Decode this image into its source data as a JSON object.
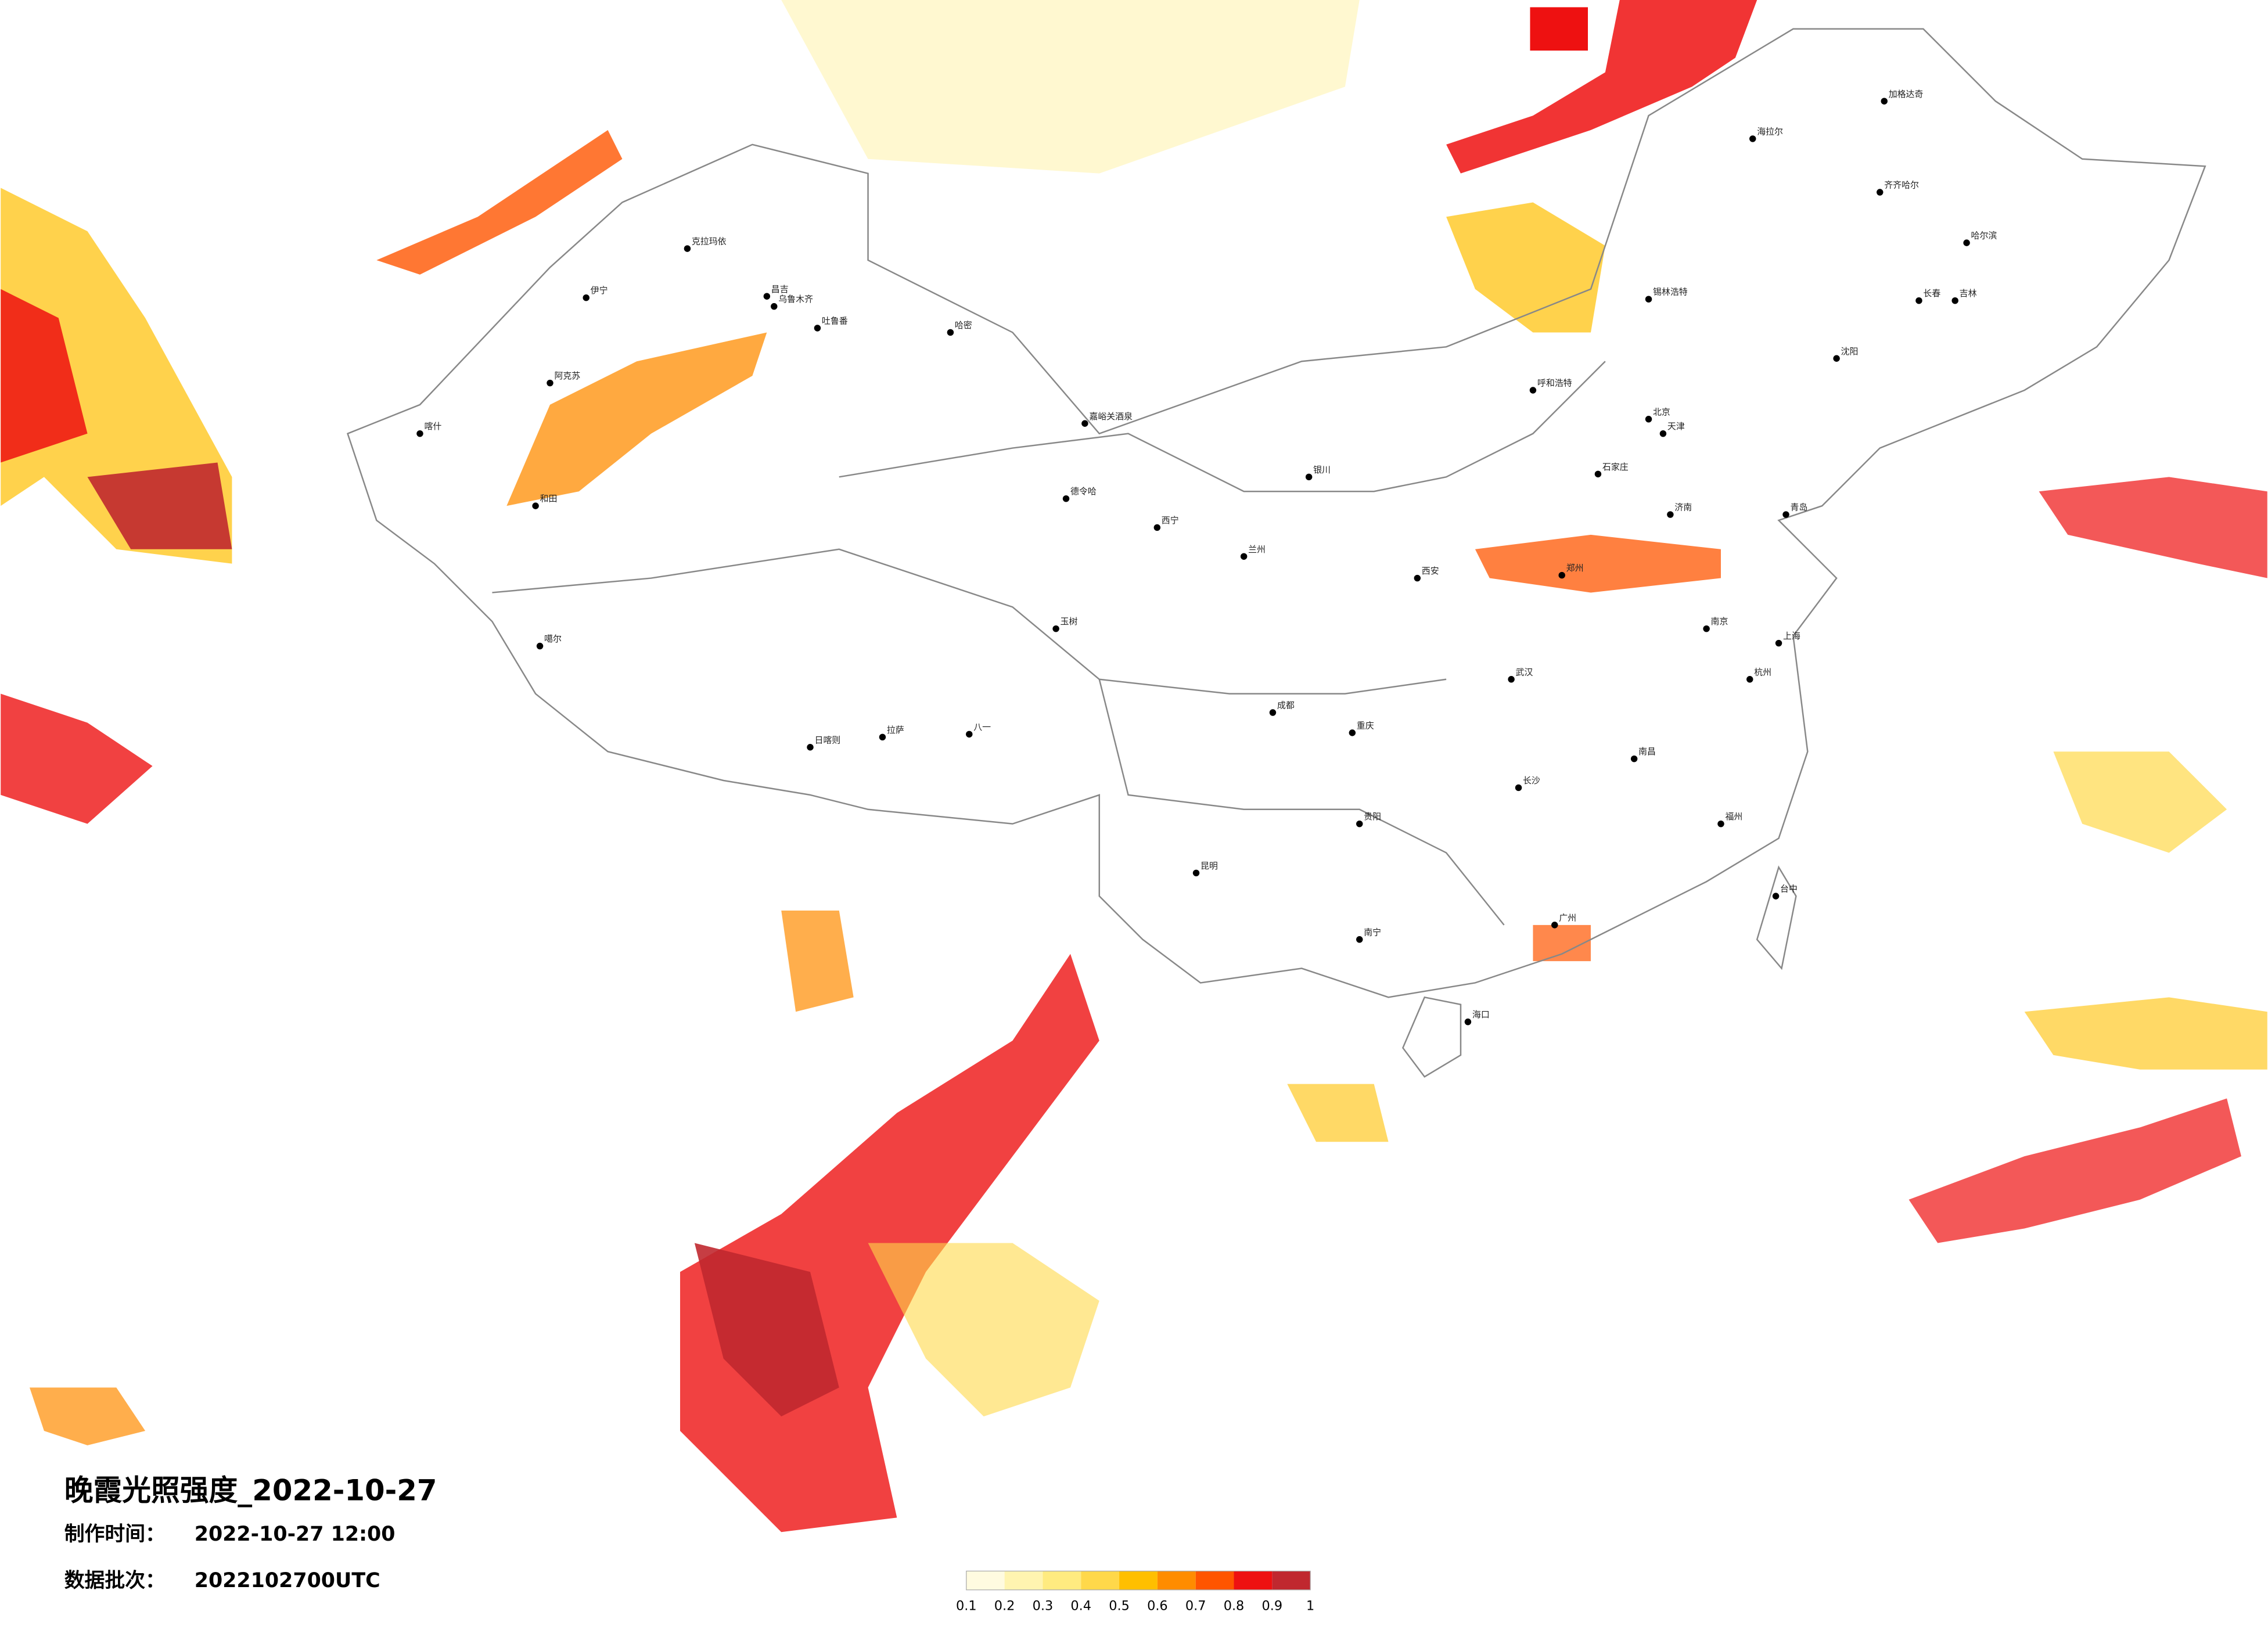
{
  "title": "晚霞光照强度_2022-10-27",
  "made_label": "制作时间：",
  "made_time": "2022-10-27 12:00",
  "batch_label": "数据批次：",
  "batch": "2022102700UTC",
  "legend": {
    "colors": [
      "#fffbe0",
      "#fff4b0",
      "#ffeb80",
      "#ffd84a",
      "#ffbf00",
      "#ff8c00",
      "#ff5500",
      "#ee1111",
      "#c0282f"
    ],
    "ticks": [
      0.1,
      0.2,
      0.3,
      0.4,
      0.5,
      0.6,
      0.7,
      0.8,
      0.9,
      1
    ]
  },
  "cities": [
    "克拉玛依",
    "伊宁",
    "昌吉",
    "乌鲁木齐",
    "吐鲁番",
    "哈密",
    "阿克苏",
    "喀什",
    "和田",
    "嘉峪关酒泉",
    "德令哈",
    "噶尔",
    "日喀则",
    "拉萨",
    "八一",
    "玉树",
    "海拉尔",
    "加格达奇",
    "齐齐哈尔",
    "哈尔滨",
    "长春",
    "吉林",
    "沈阳",
    "锡林浩特",
    "呼和浩特",
    "北京",
    "天津",
    "石家庄",
    "济南",
    "青岛",
    "郑州",
    "西安",
    "成都",
    "重庆",
    "武汉",
    "南京",
    "上海",
    "杭州",
    "长沙",
    "南昌",
    "福州",
    "昆明",
    "贵阳",
    "南宁",
    "广州",
    "海口",
    "台中",
    "兰州",
    "银川",
    "西宁"
  ]
}
